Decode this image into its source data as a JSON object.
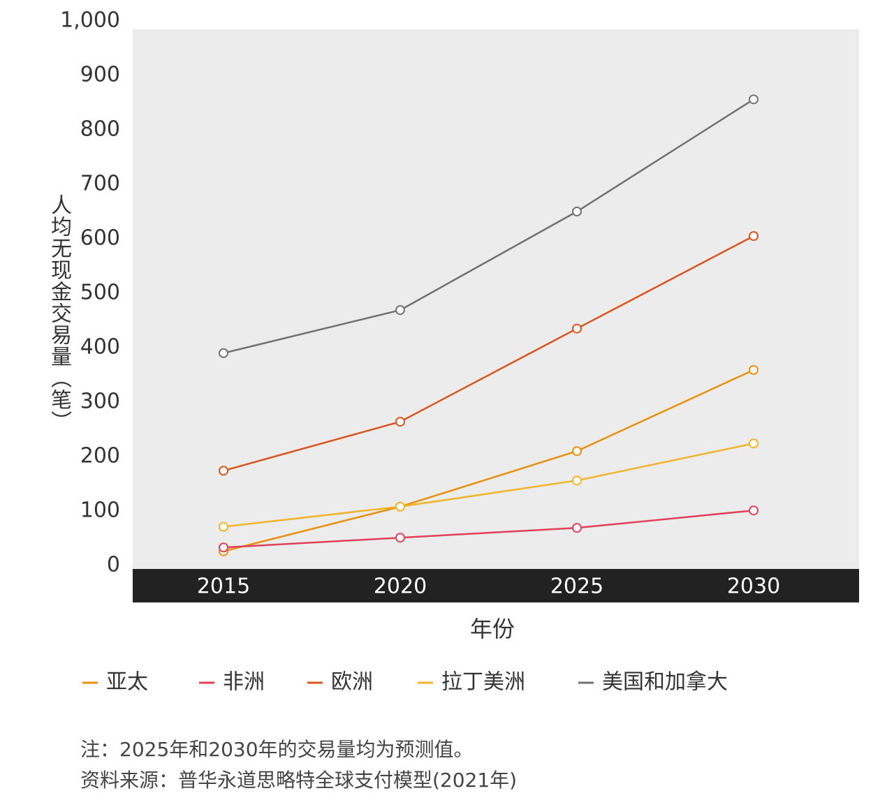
{
  "chart_data": {
    "type": "line",
    "y_label": "人均无现金交易量（笔）",
    "x_label": "年份",
    "categories": [
      "2015",
      "2020",
      "2025",
      "2030"
    ],
    "ylim": [
      0,
      1000
    ],
    "yticks": [
      0,
      100,
      200,
      300,
      400,
      500,
      600,
      700,
      800,
      900,
      {
        "value": 1000,
        "label": "1,000"
      }
    ],
    "series": [
      {
        "name": "亚太",
        "color": "#e8900c",
        "values": [
          26,
          108,
          210,
          359
        ]
      },
      {
        "name": "非洲",
        "color": "#e0405a",
        "values": [
          33,
          51,
          69,
          101
        ]
      },
      {
        "name": "欧洲",
        "color": "#d9541e",
        "values": [
          174,
          264,
          435,
          605
        ]
      },
      {
        "name": "拉丁美洲",
        "color": "#f0b429",
        "values": [
          71,
          108,
          156,
          224
        ]
      },
      {
        "name": "美国和加拿大",
        "color": "#707070",
        "values": [
          390,
          469,
          650,
          856
        ]
      }
    ],
    "notes": [
      "注：2025年和2030年的交易量均为预测值。",
      "资料来源：普华永道思略特全球支付模型(2021年)"
    ]
  }
}
